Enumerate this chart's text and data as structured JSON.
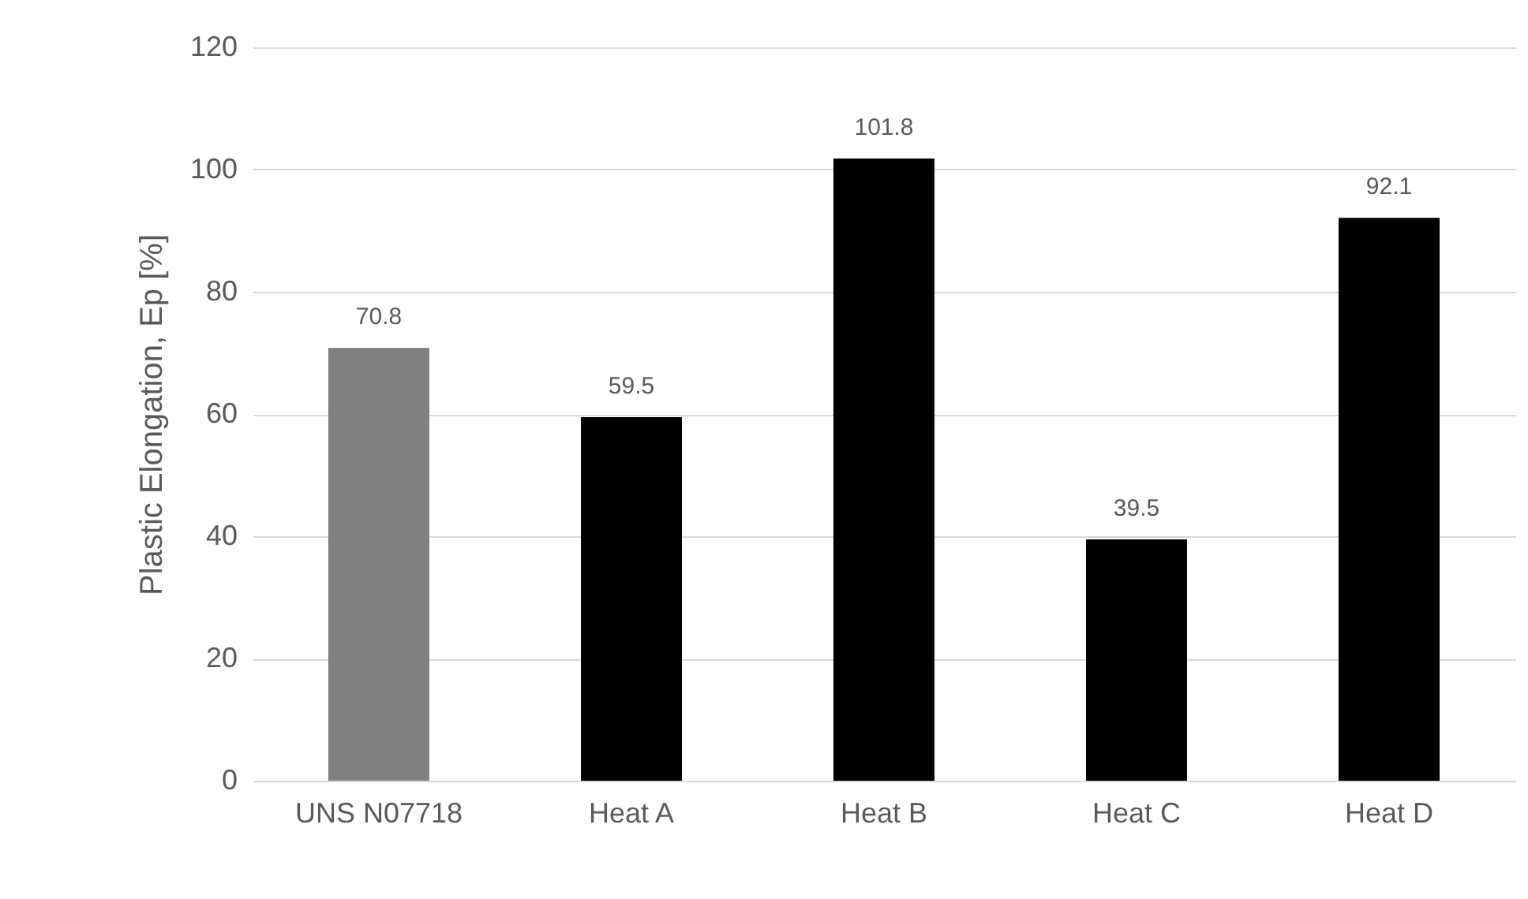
{
  "chart_data": {
    "type": "bar",
    "ylabel": "Plastic Elongation, Ep [%]",
    "categories": [
      "UNS N07718",
      "Heat A",
      "Heat B",
      "Heat C",
      "Heat D"
    ],
    "values": [
      70.8,
      59.5,
      101.8,
      39.5,
      92.1
    ],
    "colors": [
      "#808080",
      "#000000",
      "#000000",
      "#000000",
      "#000000"
    ],
    "ylim": [
      0,
      120
    ],
    "yticks": [
      0,
      20,
      40,
      60,
      80,
      100,
      120
    ],
    "grid": "y",
    "data_labels": true
  }
}
